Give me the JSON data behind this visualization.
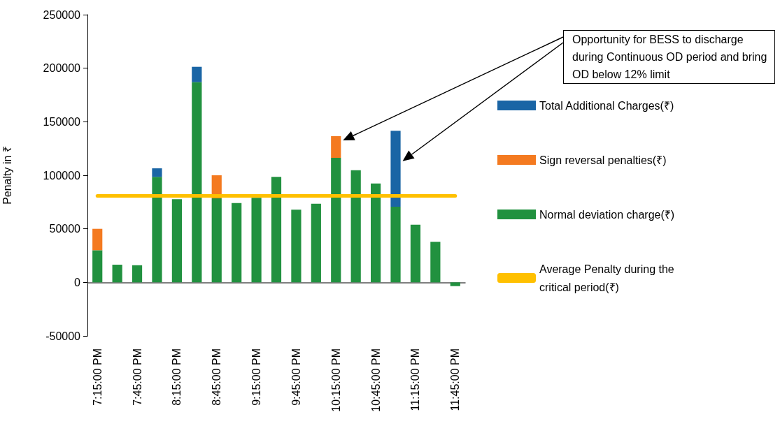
{
  "chart_data": {
    "type": "bar",
    "stacked": true,
    "ylabel": "Penalty in ₹",
    "ylim": [
      -50000,
      250000
    ],
    "yticks": [
      -50000,
      0,
      50000,
      100000,
      150000,
      200000,
      250000
    ],
    "legend": "right",
    "marker": "none",
    "categories": [
      "7:15:00 PM",
      null,
      "7:45:00 PM",
      null,
      "8:15:00 PM",
      null,
      "8:45:00 PM",
      null,
      "9:15:00 PM",
      null,
      "9:45:00 PM",
      null,
      "10:15:00 PM",
      null,
      "10:45:00 PM",
      null,
      "11:15:00 PM",
      null,
      "11:45:00 PM"
    ],
    "series": [
      {
        "name": "Normal deviation charge(₹)",
        "color": "#21913f",
        "values": [
          30000,
          16500,
          16000,
          98500,
          77600,
          187000,
          78500,
          74100,
          79000,
          98500,
          67800,
          73500,
          116300,
          104800,
          92400,
          70600,
          53900,
          37900,
          -3500
        ]
      },
      {
        "name": "Sign reversal penalties(₹)",
        "color": "#f47a20",
        "values": [
          20000,
          null,
          null,
          null,
          null,
          null,
          21500,
          null,
          null,
          null,
          null,
          null,
          20300,
          null,
          null,
          null,
          null,
          null,
          null
        ]
      },
      {
        "name": "Total Additional Charges(₹)",
        "color": "#1a65a5",
        "values": [
          null,
          null,
          null,
          8000,
          null,
          14300,
          null,
          null,
          null,
          null,
          null,
          null,
          null,
          null,
          null,
          71000,
          null,
          null,
          null
        ]
      },
      {
        "name": "Average Penalty during the critical period(₹)",
        "type": "line",
        "color": "#ffc000",
        "values": [
          80700,
          80700,
          80700,
          80700,
          80700,
          80700,
          80700,
          80700,
          80700,
          80700,
          80700,
          80700,
          80700,
          80700,
          80700,
          80700,
          80700,
          80700,
          80700
        ]
      }
    ],
    "annotations": [
      "Opportunity for BESS to discharge during Continuous OD period and bring OD below 12% limit"
    ]
  }
}
